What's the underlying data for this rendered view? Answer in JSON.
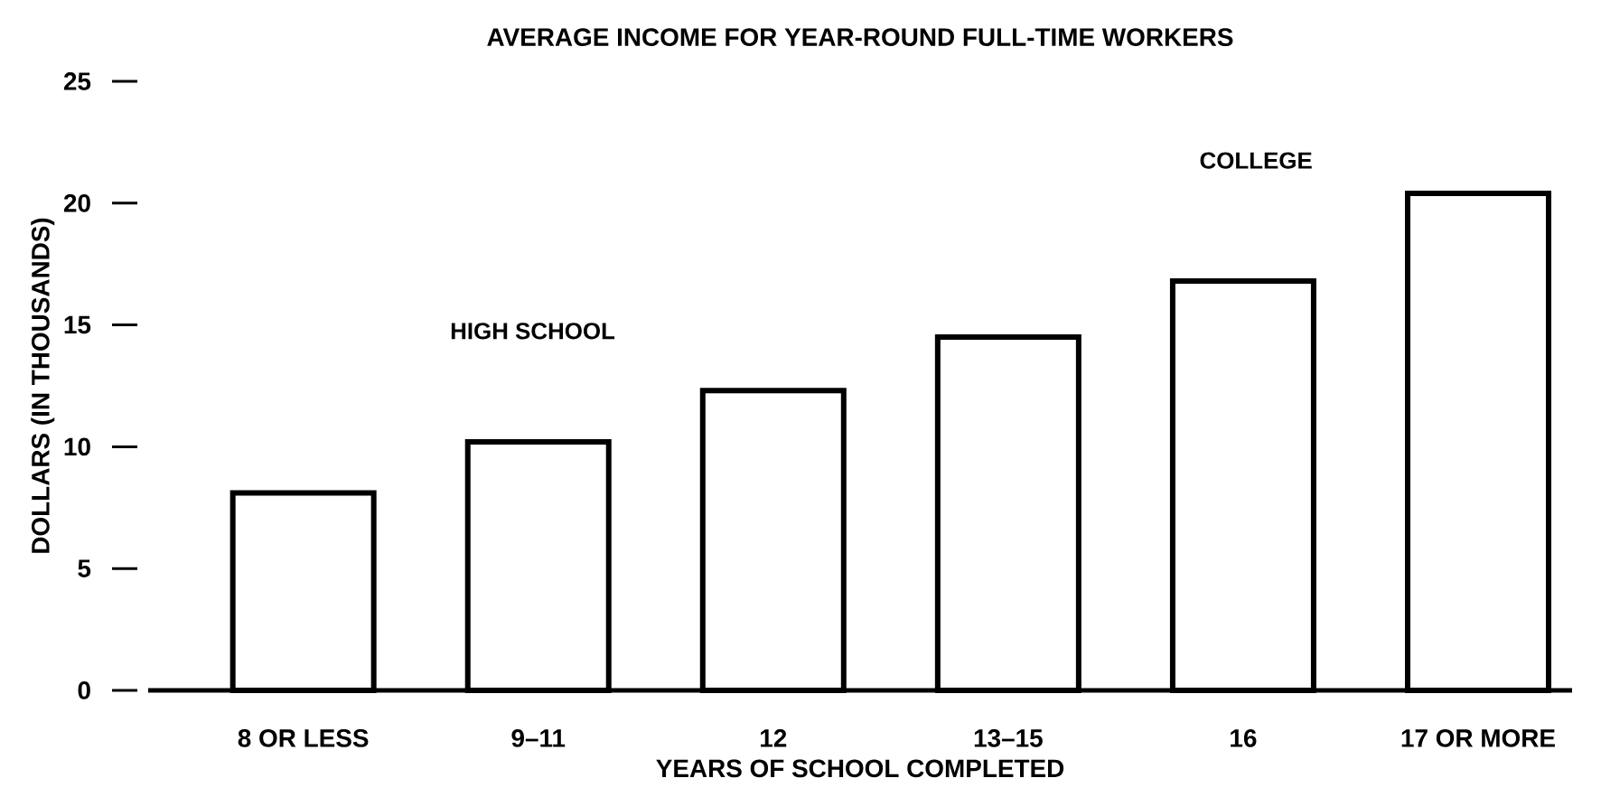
{
  "chart_data": {
    "type": "bar",
    "title": "AVERAGE INCOME FOR YEAR-ROUND FULL-TIME WORKERS",
    "xlabel": "YEARS OF SCHOOL COMPLETED",
    "ylabel": "DOLLARS  (IN THOUSANDS)",
    "categories": [
      "8 OR LESS",
      "9–11",
      "12",
      "13–15",
      "16",
      "17 OR MORE"
    ],
    "values": [
      8.1,
      10.2,
      12.3,
      14.5,
      16.8,
      20.4
    ],
    "color": "#ffffff",
    "ylim": [
      0,
      25
    ],
    "yticks": [
      0,
      5,
      10,
      15,
      20,
      25
    ],
    "annotations": [
      "HIGH SCHOOL",
      "COLLEGE"
    ]
  }
}
